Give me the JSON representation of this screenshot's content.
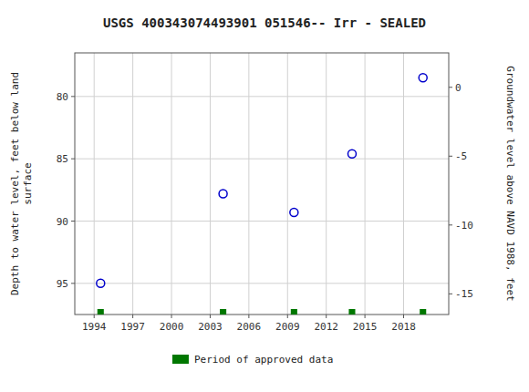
{
  "chart_data": {
    "type": "scatter",
    "title": "USGS 400343074493901 051546-- Irr - SEALED",
    "ylabel": "Depth to water level, feet below land\nsurface",
    "y2label": "Groundwater level above NAVD 1988, feet",
    "x": [
      1994.5,
      2004.0,
      2009.5,
      2014.0,
      2019.5
    ],
    "series": [
      {
        "type": "scatter",
        "color": "#0000CC",
        "marker": "circle-open",
        "values": [
          95.0,
          87.8,
          89.3,
          84.6,
          78.5
        ]
      },
      {
        "type": "rug",
        "name": "Period of approved data",
        "color": "#007700",
        "x": [
          1994.5,
          2004.0,
          2009.5,
          2014.0,
          2019.5
        ]
      }
    ],
    "xlim": [
      1992.5,
      2021.5
    ],
    "xticks": [
      1994,
      1997,
      2000,
      2003,
      2006,
      2009,
      2012,
      2015,
      2018
    ],
    "ylim": [
      97.5,
      76.5
    ],
    "yticks": [
      80,
      85,
      90,
      95
    ],
    "y2lim": [
      -16.5,
      2.5
    ],
    "y2ticks": [
      0,
      -5,
      -10,
      -15
    ],
    "grid": true,
    "legend": "bottom"
  }
}
